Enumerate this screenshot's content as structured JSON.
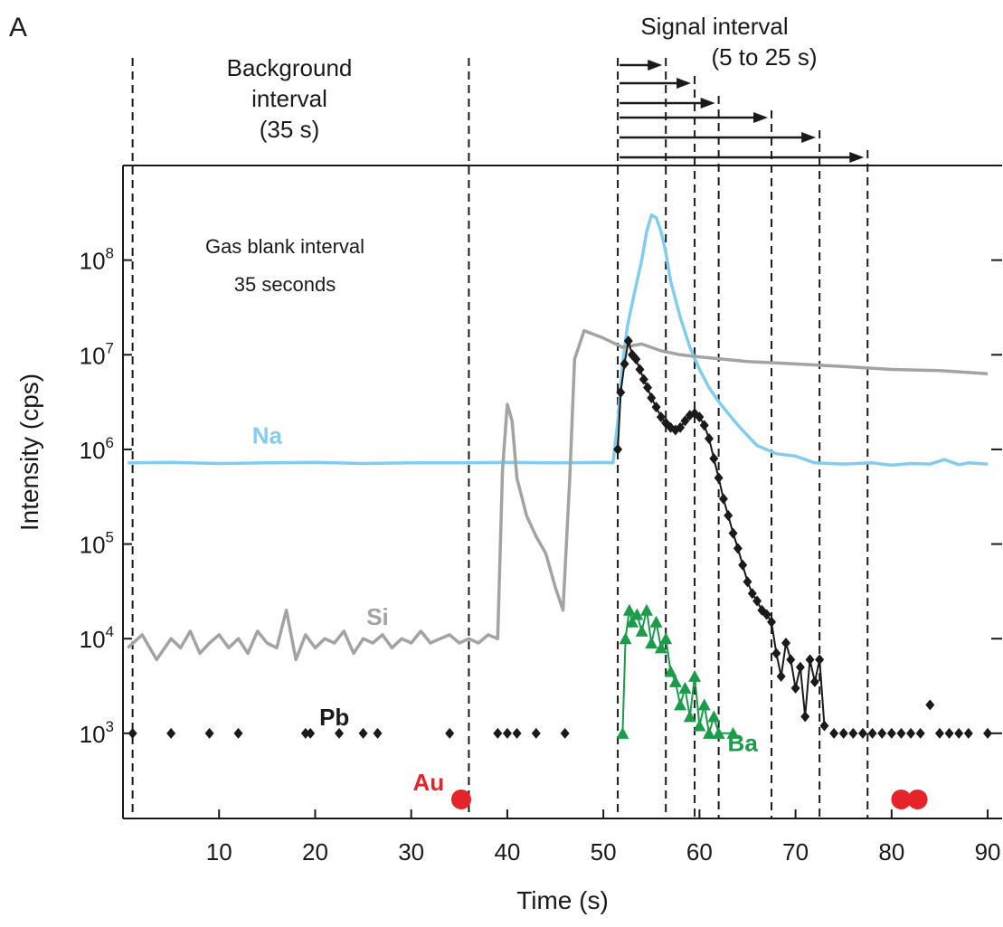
{
  "chart_data": {
    "type": "scatter",
    "panel_label": "A",
    "title": "",
    "xlabel": "Time (s)",
    "ylabel": "Intensity (cps)",
    "xlim": [
      0,
      91.5
    ],
    "ylim_log10": [
      2.1,
      9.0
    ],
    "y_scale": "log",
    "x_ticks": [
      10,
      20,
      30,
      40,
      50,
      60,
      70,
      80,
      90
    ],
    "y_ticks": [
      {
        "value": 1000,
        "base": "10",
        "exp": "3"
      },
      {
        "value": 10000,
        "base": "10",
        "exp": "4"
      },
      {
        "value": 100000,
        "base": "10",
        "exp": "5"
      },
      {
        "value": 1000000,
        "base": "10",
        "exp": "6"
      },
      {
        "value": 10000000,
        "base": "10",
        "exp": "7"
      },
      {
        "value": 100000000,
        "base": "10",
        "exp": "8"
      }
    ],
    "grid": false,
    "annotations": {
      "background": [
        "Background",
        "interval",
        "(35 s)"
      ],
      "signal": [
        "Signal interval",
        "(5 to 25 s)"
      ],
      "gas_blank": [
        "Gas blank interval",
        "35 seconds"
      ]
    },
    "background_bounds": [
      1,
      36
    ],
    "signal_start": 51.5,
    "signal_ends": [
      56.5,
      59.5,
      62,
      67.5,
      72.5,
      77.5
    ],
    "series": [
      {
        "name": "Na",
        "color": "#82cdef",
        "style": "line",
        "label_at": [
          15,
          1150000
        ],
        "x": [
          0.5,
          5,
          10,
          15,
          20,
          25,
          30,
          35,
          40,
          45,
          50,
          51,
          51.5,
          52,
          52.5,
          53,
          53.5,
          54,
          54.5,
          55,
          55.5,
          56,
          56.5,
          57,
          58,
          59,
          60,
          61,
          62,
          63,
          64,
          65,
          66,
          68,
          70,
          72,
          75,
          78,
          80,
          82,
          84,
          85.5,
          87,
          88,
          90
        ],
        "y": [
          720000,
          730000,
          710000,
          720000,
          730000,
          710000,
          720000,
          720000,
          730000,
          720000,
          730000,
          720000,
          2000000,
          8000000,
          20000000,
          35000000,
          60000000,
          100000000,
          200000000,
          300000000,
          280000000,
          200000000,
          120000000,
          60000000,
          25000000,
          12000000,
          7000000,
          4500000,
          3200000,
          2400000,
          1800000,
          1400000,
          1100000,
          900000,
          850000,
          720000,
          700000,
          720000,
          680000,
          710000,
          700000,
          780000,
          690000,
          720000,
          700000
        ]
      },
      {
        "name": "Si",
        "color": "#a3a3a3",
        "style": "line",
        "label_at": [
          26.5,
          14000
        ],
        "x": [
          0.5,
          2,
          3.5,
          5,
          6,
          7,
          8,
          9,
          10,
          11,
          12,
          13,
          14,
          15,
          16,
          17,
          18,
          19,
          20,
          21,
          22,
          23,
          24,
          25,
          26,
          27,
          28,
          29,
          30,
          31,
          32,
          33,
          34,
          35,
          36,
          37,
          38,
          39,
          39.5,
          40,
          40.5,
          41,
          42,
          43,
          44,
          45,
          45.8,
          46.5,
          47,
          48,
          50,
          52,
          54,
          56,
          58,
          60,
          65,
          70,
          75,
          80,
          85,
          90
        ],
        "y": [
          8000,
          11000,
          6000,
          10000,
          8000,
          12000,
          7000,
          9000,
          11000,
          8000,
          10000,
          7000,
          12000,
          9000,
          8000,
          20000,
          6000,
          11000,
          8000,
          10000,
          9000,
          12000,
          7000,
          10000,
          9000,
          11000,
          8000,
          10000,
          9000,
          12000,
          9000,
          10000,
          11000,
          9000,
          10000,
          9000,
          11000,
          10000,
          600000,
          3000000,
          2000000,
          500000,
          200000,
          120000,
          80000,
          35000,
          20000,
          500000,
          9000000,
          18000000,
          15000000,
          12000000,
          13000000,
          11000000,
          10000000,
          9500000,
          8500000,
          8000000,
          7500000,
          7000000,
          6800000,
          6300000
        ]
      },
      {
        "name": "Pb",
        "color": "#1a1a1a",
        "style": "markers-diamond",
        "label_at": [
          22,
          1220
        ],
        "x": [
          1,
          5,
          9,
          12,
          19,
          19.5,
          22.5,
          25,
          26.5,
          34,
          39,
          40,
          41,
          43,
          46,
          51.5,
          51.8,
          52.2,
          52.6,
          53,
          53.4,
          53.8,
          54.2,
          54.6,
          55,
          55.5,
          56,
          56.5,
          57,
          57.5,
          58,
          58.5,
          59,
          59.5,
          60,
          60.5,
          61,
          61.5,
          62,
          62.5,
          63,
          63.5,
          64,
          64.5,
          65,
          65.5,
          66,
          66.5,
          67,
          67.5,
          68,
          68.5,
          69,
          69.5,
          70,
          70.5,
          71,
          71.5,
          72,
          72.5,
          73,
          74,
          75,
          76,
          77,
          78,
          79,
          80,
          81,
          82,
          83,
          84,
          85,
          86,
          87,
          88,
          90
        ],
        "y": [
          1000,
          1000,
          1000,
          1000,
          1000,
          1000,
          1000,
          1000,
          1000,
          1000,
          1000,
          1000,
          1000,
          1000,
          1000,
          1000000,
          4000000,
          8000000,
          14000000,
          10000000,
          9000000,
          7000000,
          5500000,
          4500000,
          3500000,
          2800000,
          2200000,
          1900000,
          1700000,
          1600000,
          1700000,
          2000000,
          2300000,
          2400000,
          2200000,
          1800000,
          1300000,
          800000,
          500000,
          300000,
          200000,
          130000,
          90000,
          60000,
          40000,
          30000,
          25000,
          20000,
          18000,
          15000,
          7000,
          4000,
          9000,
          6000,
          3000,
          5000,
          1500,
          6000,
          3500,
          6000,
          1200,
          1000,
          1000,
          1000,
          1000,
          1000,
          1000,
          1000,
          1000,
          1000,
          1000,
          2000,
          1000,
          1000,
          1000,
          1000,
          1000
        ]
      },
      {
        "name": "Ba",
        "color": "#1a9c4a",
        "style": "markers-triangle",
        "label_at": [
          64.5,
          650
        ],
        "x": [
          52,
          52.3,
          52.7,
          53,
          53.5,
          54,
          54.5,
          55,
          55.5,
          56,
          56.5,
          57,
          57.5,
          58,
          58.5,
          59,
          59.5,
          60,
          60.5,
          61,
          61.5,
          62,
          63.5
        ],
        "y": [
          1000,
          10000,
          20000,
          15000,
          18000,
          12000,
          20000,
          9000,
          15000,
          8000,
          10000,
          4500,
          3500,
          2000,
          3000,
          1500,
          4000,
          1200,
          2000,
          1000,
          1500,
          1000,
          1000
        ]
      },
      {
        "name": "Au",
        "color": "#e52329",
        "style": "markers-circle",
        "label_at": [
          31.8,
          250
        ],
        "x": [
          35.2,
          81,
          82.7
        ],
        "y": [
          200,
          200,
          200
        ]
      }
    ]
  }
}
